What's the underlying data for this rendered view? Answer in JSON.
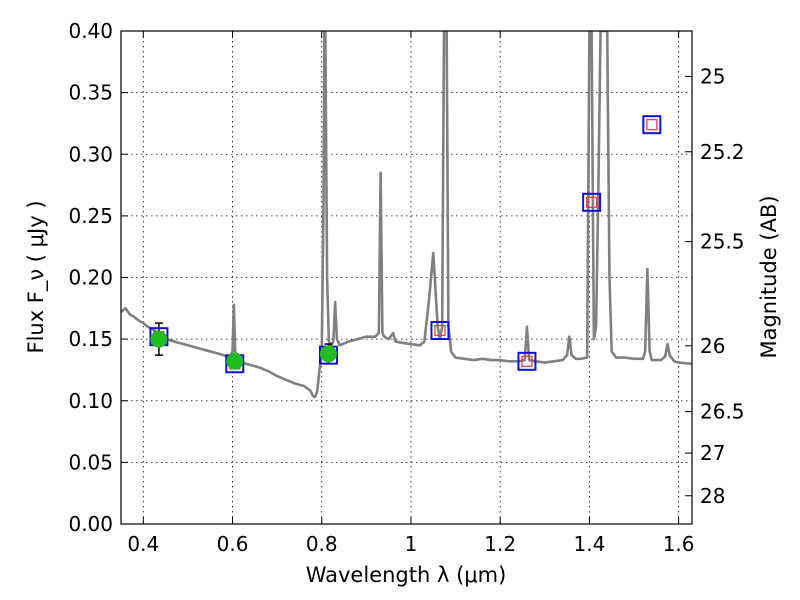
{
  "chart_data": {
    "type": "line",
    "title": "",
    "xlabel": "Wavelength  λ (μm)",
    "ylabel": "Flux  F_ν  ( μJy )",
    "y2label": "Magnitude (AB)",
    "xlim": [
      0.35,
      1.63
    ],
    "ylim": [
      0,
      0.4
    ],
    "grid": true,
    "xticks": [
      0.4,
      0.6,
      0.8,
      1.0,
      1.2,
      1.4,
      1.6
    ],
    "xtick_labels": [
      "0.4",
      "0.6",
      "0.8",
      "1",
      "1.2",
      "1.4",
      "1.6"
    ],
    "yticks": [
      0,
      0.05,
      0.1,
      0.15,
      0.2,
      0.25,
      0.3,
      0.35,
      0.4
    ],
    "ytick_labels": [
      "0.00",
      "0.05",
      "0.10",
      "0.15",
      "0.20",
      "0.25",
      "0.30",
      "0.35",
      "0.40"
    ],
    "y2ticks": [
      25,
      25.2,
      25.5,
      26,
      26.5,
      27,
      28
    ],
    "y2tick_labels": [
      "25",
      "25.2",
      "25.5",
      "26",
      "26.5",
      "27",
      "28"
    ],
    "colors": {
      "model": "#808080",
      "observed": "#22bb22",
      "model_box": "#1111dd",
      "model_inner": "#ee3333",
      "errorbar": "#000000"
    },
    "series": [
      {
        "type": "line",
        "points": [
          [
            0.35,
            0.172
          ],
          [
            0.36,
            0.175
          ],
          [
            0.37,
            0.17
          ],
          [
            0.38,
            0.168
          ],
          [
            0.39,
            0.165
          ],
          [
            0.4,
            0.163
          ],
          [
            0.41,
            0.16
          ],
          [
            0.42,
            0.158
          ],
          [
            0.43,
            0.156
          ],
          [
            0.44,
            0.152
          ],
          [
            0.46,
            0.149
          ],
          [
            0.48,
            0.147
          ],
          [
            0.5,
            0.145
          ],
          [
            0.52,
            0.143
          ],
          [
            0.54,
            0.141
          ],
          [
            0.56,
            0.139
          ],
          [
            0.58,
            0.137
          ],
          [
            0.595,
            0.135
          ],
          [
            0.6,
            0.14
          ],
          [
            0.603,
            0.178
          ],
          [
            0.606,
            0.14
          ],
          [
            0.61,
            0.134
          ],
          [
            0.62,
            0.131
          ],
          [
            0.64,
            0.129
          ],
          [
            0.66,
            0.127
          ],
          [
            0.68,
            0.124
          ],
          [
            0.7,
            0.12
          ],
          [
            0.72,
            0.117
          ],
          [
            0.74,
            0.114
          ],
          [
            0.76,
            0.112
          ],
          [
            0.775,
            0.108
          ],
          [
            0.78,
            0.104
          ],
          [
            0.785,
            0.103
          ],
          [
            0.79,
            0.108
          ],
          [
            0.795,
            0.125
          ],
          [
            0.8,
            0.14
          ],
          [
            0.804,
            0.26
          ],
          [
            0.806,
            0.4
          ],
          [
            0.808,
            0.4
          ],
          [
            0.812,
            0.2
          ],
          [
            0.816,
            0.148
          ],
          [
            0.82,
            0.145
          ],
          [
            0.826,
            0.148
          ],
          [
            0.83,
            0.18
          ],
          [
            0.834,
            0.15
          ],
          [
            0.84,
            0.145
          ],
          [
            0.86,
            0.148
          ],
          [
            0.88,
            0.15
          ],
          [
            0.9,
            0.152
          ],
          [
            0.92,
            0.152
          ],
          [
            0.928,
            0.155
          ],
          [
            0.932,
            0.285
          ],
          [
            0.936,
            0.155
          ],
          [
            0.94,
            0.152
          ],
          [
            0.95,
            0.15
          ],
          [
            0.96,
            0.155
          ],
          [
            0.965,
            0.148
          ],
          [
            0.98,
            0.147
          ],
          [
            1.0,
            0.146
          ],
          [
            1.02,
            0.145
          ],
          [
            1.03,
            0.148
          ],
          [
            1.04,
            0.18
          ],
          [
            1.05,
            0.22
          ],
          [
            1.055,
            0.19
          ],
          [
            1.06,
            0.16
          ],
          [
            1.065,
            0.15
          ],
          [
            1.07,
            0.16
          ],
          [
            1.074,
            0.4
          ],
          [
            1.08,
            0.4
          ],
          [
            1.084,
            0.16
          ],
          [
            1.09,
            0.14
          ],
          [
            1.1,
            0.135
          ],
          [
            1.12,
            0.134
          ],
          [
            1.14,
            0.133
          ],
          [
            1.16,
            0.134
          ],
          [
            1.18,
            0.133
          ],
          [
            1.2,
            0.133
          ],
          [
            1.22,
            0.132
          ],
          [
            1.24,
            0.132
          ],
          [
            1.255,
            0.133
          ],
          [
            1.26,
            0.16
          ],
          [
            1.265,
            0.133
          ],
          [
            1.28,
            0.132
          ],
          [
            1.3,
            0.131
          ],
          [
            1.32,
            0.132
          ],
          [
            1.34,
            0.133
          ],
          [
            1.35,
            0.137
          ],
          [
            1.355,
            0.152
          ],
          [
            1.36,
            0.137
          ],
          [
            1.37,
            0.134
          ],
          [
            1.38,
            0.134
          ],
          [
            1.395,
            0.135
          ],
          [
            1.4,
            0.4
          ],
          [
            1.405,
            0.4
          ],
          [
            1.41,
            0.15
          ],
          [
            1.415,
            0.16
          ],
          [
            1.42,
            0.27
          ],
          [
            1.425,
            0.4
          ],
          [
            1.44,
            0.4
          ],
          [
            1.445,
            0.2
          ],
          [
            1.45,
            0.14
          ],
          [
            1.46,
            0.135
          ],
          [
            1.48,
            0.135
          ],
          [
            1.5,
            0.134
          ],
          [
            1.52,
            0.134
          ],
          [
            1.525,
            0.14
          ],
          [
            1.53,
            0.207
          ],
          [
            1.535,
            0.14
          ],
          [
            1.54,
            0.133
          ],
          [
            1.56,
            0.133
          ],
          [
            1.57,
            0.136
          ],
          [
            1.575,
            0.146
          ],
          [
            1.58,
            0.137
          ],
          [
            1.59,
            0.132
          ],
          [
            1.6,
            0.131
          ],
          [
            1.63,
            0.13
          ]
        ]
      },
      {
        "type": "scatter",
        "points": [
          {
            "x": 0.435,
            "y": 0.15,
            "err": 0.013
          },
          {
            "x": 0.605,
            "y": 0.132,
            "err": 0.006
          },
          {
            "x": 0.815,
            "y": 0.138,
            "err": 0.008
          }
        ]
      },
      {
        "type": "scatter",
        "points": [
          {
            "x": 0.435,
            "y": 0.152
          },
          {
            "x": 0.605,
            "y": 0.13
          },
          {
            "x": 0.815,
            "y": 0.137
          },
          {
            "x": 1.065,
            "y": 0.157
          },
          {
            "x": 1.26,
            "y": 0.132
          },
          {
            "x": 1.405,
            "y": 0.261
          },
          {
            "x": 1.54,
            "y": 0.324
          }
        ]
      }
    ]
  }
}
